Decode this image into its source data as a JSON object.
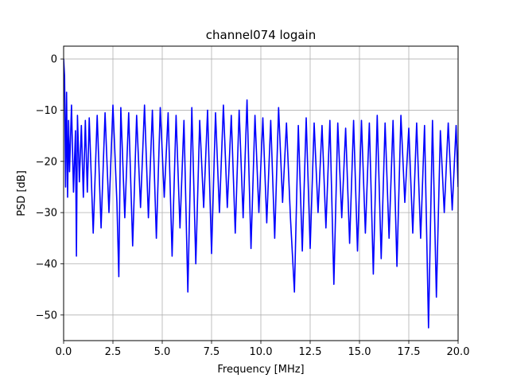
{
  "chart_data": {
    "type": "line",
    "title": "channel074 logain",
    "xlabel": "Frequency [MHz]",
    "ylabel": "PSD [dB]",
    "xlim": [
      0,
      20
    ],
    "ylim": [
      -55,
      2.5
    ],
    "grid": true,
    "x_ticks": [
      0,
      2.5,
      5,
      7.5,
      10,
      12.5,
      15,
      17.5,
      20
    ],
    "x_tick_labels": [
      "0.0",
      "2.5",
      "5.0",
      "7.5",
      "10.0",
      "12.5",
      "15.0",
      "17.5",
      "20.0"
    ],
    "y_ticks": [
      0,
      -10,
      -20,
      -30,
      -40,
      -50
    ],
    "y_tick_labels": [
      "0",
      "−10",
      "−20",
      "−30",
      "−40",
      "−50"
    ],
    "series": [
      {
        "color": "#0000ff",
        "x": [
          0.0,
          0.05,
          0.1,
          0.15,
          0.2,
          0.25,
          0.3,
          0.4,
          0.5,
          0.6,
          0.65,
          0.7,
          0.8,
          0.9,
          1.0,
          1.1,
          1.2,
          1.3,
          1.5,
          1.7,
          1.9,
          2.1,
          2.3,
          2.5,
          2.7,
          2.8,
          2.9,
          3.1,
          3.3,
          3.5,
          3.7,
          3.9,
          4.1,
          4.3,
          4.5,
          4.7,
          4.9,
          5.1,
          5.3,
          5.5,
          5.7,
          5.9,
          6.1,
          6.3,
          6.5,
          6.7,
          6.9,
          7.1,
          7.3,
          7.5,
          7.7,
          7.9,
          8.1,
          8.3,
          8.5,
          8.7,
          8.9,
          9.1,
          9.3,
          9.5,
          9.7,
          9.9,
          10.1,
          10.3,
          10.5,
          10.7,
          10.9,
          11.1,
          11.3,
          11.5,
          11.7,
          11.9,
          12.1,
          12.3,
          12.5,
          12.7,
          12.9,
          13.1,
          13.3,
          13.5,
          13.7,
          13.9,
          14.1,
          14.3,
          14.5,
          14.7,
          14.9,
          15.1,
          15.3,
          15.5,
          15.7,
          15.9,
          16.1,
          16.3,
          16.5,
          16.7,
          16.9,
          17.1,
          17.3,
          17.5,
          17.7,
          17.9,
          18.1,
          18.3,
          18.5,
          18.7,
          18.9,
          19.1,
          19.3,
          19.5,
          19.7,
          19.9,
          20.0
        ],
        "y": [
          0.0,
          -3.5,
          -25.0,
          -6.5,
          -27.0,
          -12.0,
          -22.0,
          -9.0,
          -26.0,
          -14.0,
          -38.5,
          -11.0,
          -24.0,
          -13.0,
          -27.0,
          -12.0,
          -26.0,
          -11.5,
          -34.0,
          -11.0,
          -33.0,
          -10.5,
          -30.0,
          -9.0,
          -28.0,
          -42.5,
          -9.5,
          -31.0,
          -10.5,
          -36.5,
          -11.0,
          -29.0,
          -9.0,
          -31.0,
          -10.0,
          -35.0,
          -9.5,
          -27.0,
          -10.5,
          -38.5,
          -11.0,
          -33.0,
          -12.0,
          -45.5,
          -9.5,
          -40.0,
          -12.0,
          -29.0,
          -10.0,
          -38.0,
          -10.5,
          -30.0,
          -9.0,
          -29.0,
          -11.0,
          -34.0,
          -10.0,
          -31.0,
          -8.0,
          -37.0,
          -11.0,
          -30.0,
          -11.5,
          -32.0,
          -12.0,
          -35.0,
          -9.5,
          -28.0,
          -12.5,
          -31.0,
          -45.5,
          -13.0,
          -37.5,
          -11.5,
          -37.0,
          -12.5,
          -30.0,
          -13.0,
          -33.0,
          -12.0,
          -44.0,
          -12.5,
          -31.0,
          -13.5,
          -36.0,
          -12.0,
          -37.5,
          -12.0,
          -34.0,
          -12.5,
          -42.0,
          -11.0,
          -39.0,
          -12.5,
          -35.0,
          -12.0,
          -40.5,
          -11.0,
          -28.0,
          -13.5,
          -34.0,
          -12.5,
          -35.0,
          -13.0,
          -52.5,
          -12.0,
          -46.5,
          -14.0,
          -30.0,
          -12.5,
          -29.5,
          -13.0,
          -25.0
        ]
      }
    ]
  }
}
